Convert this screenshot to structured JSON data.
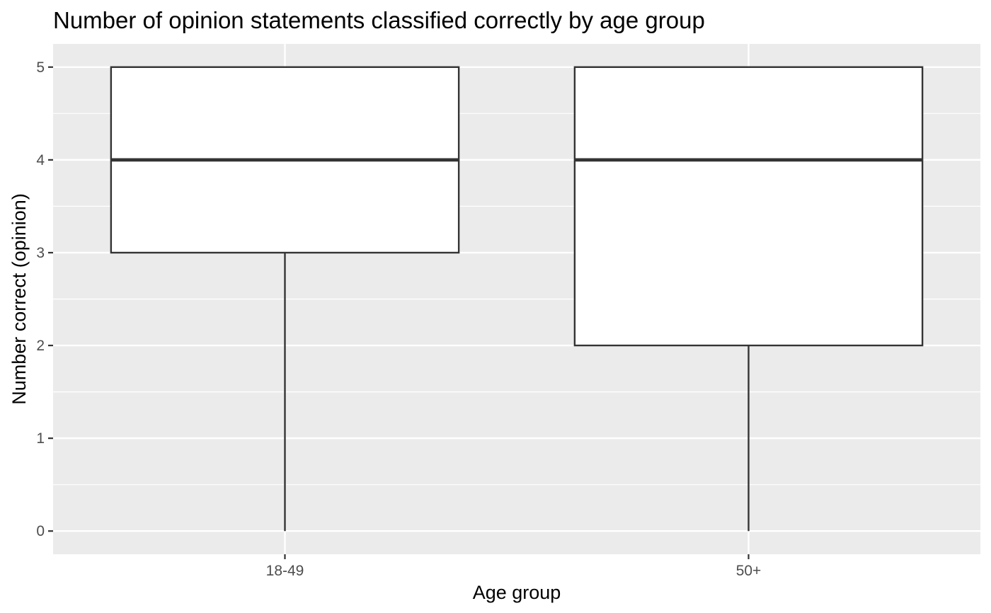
{
  "chart_data": {
    "type": "boxplot",
    "title": "Number of opinion statements classified correctly by age group",
    "xlabel": "Age group",
    "ylabel": "Number correct (opinion)",
    "categories": [
      "18-49",
      "50+"
    ],
    "boxes": [
      {
        "category": "18-49",
        "min": 0,
        "q1": 3,
        "median": 4,
        "q3": 5,
        "max": 5
      },
      {
        "category": "50+",
        "min": 0,
        "q1": 2,
        "median": 4,
        "q3": 5,
        "max": 5
      }
    ],
    "ylim": [
      -0.25,
      5.25
    ],
    "y_ticks": [
      0,
      1,
      2,
      3,
      4,
      5
    ],
    "grid": true,
    "legend": "none",
    "colors": {
      "panel_background": "#EBEBEB",
      "grid_line": "#FFFFFF",
      "box_fill": "#FFFFFF",
      "box_outline": "#333333",
      "tick_mark": "#333333",
      "tick_label": "#4D4D4D",
      "text": "#000000"
    }
  }
}
